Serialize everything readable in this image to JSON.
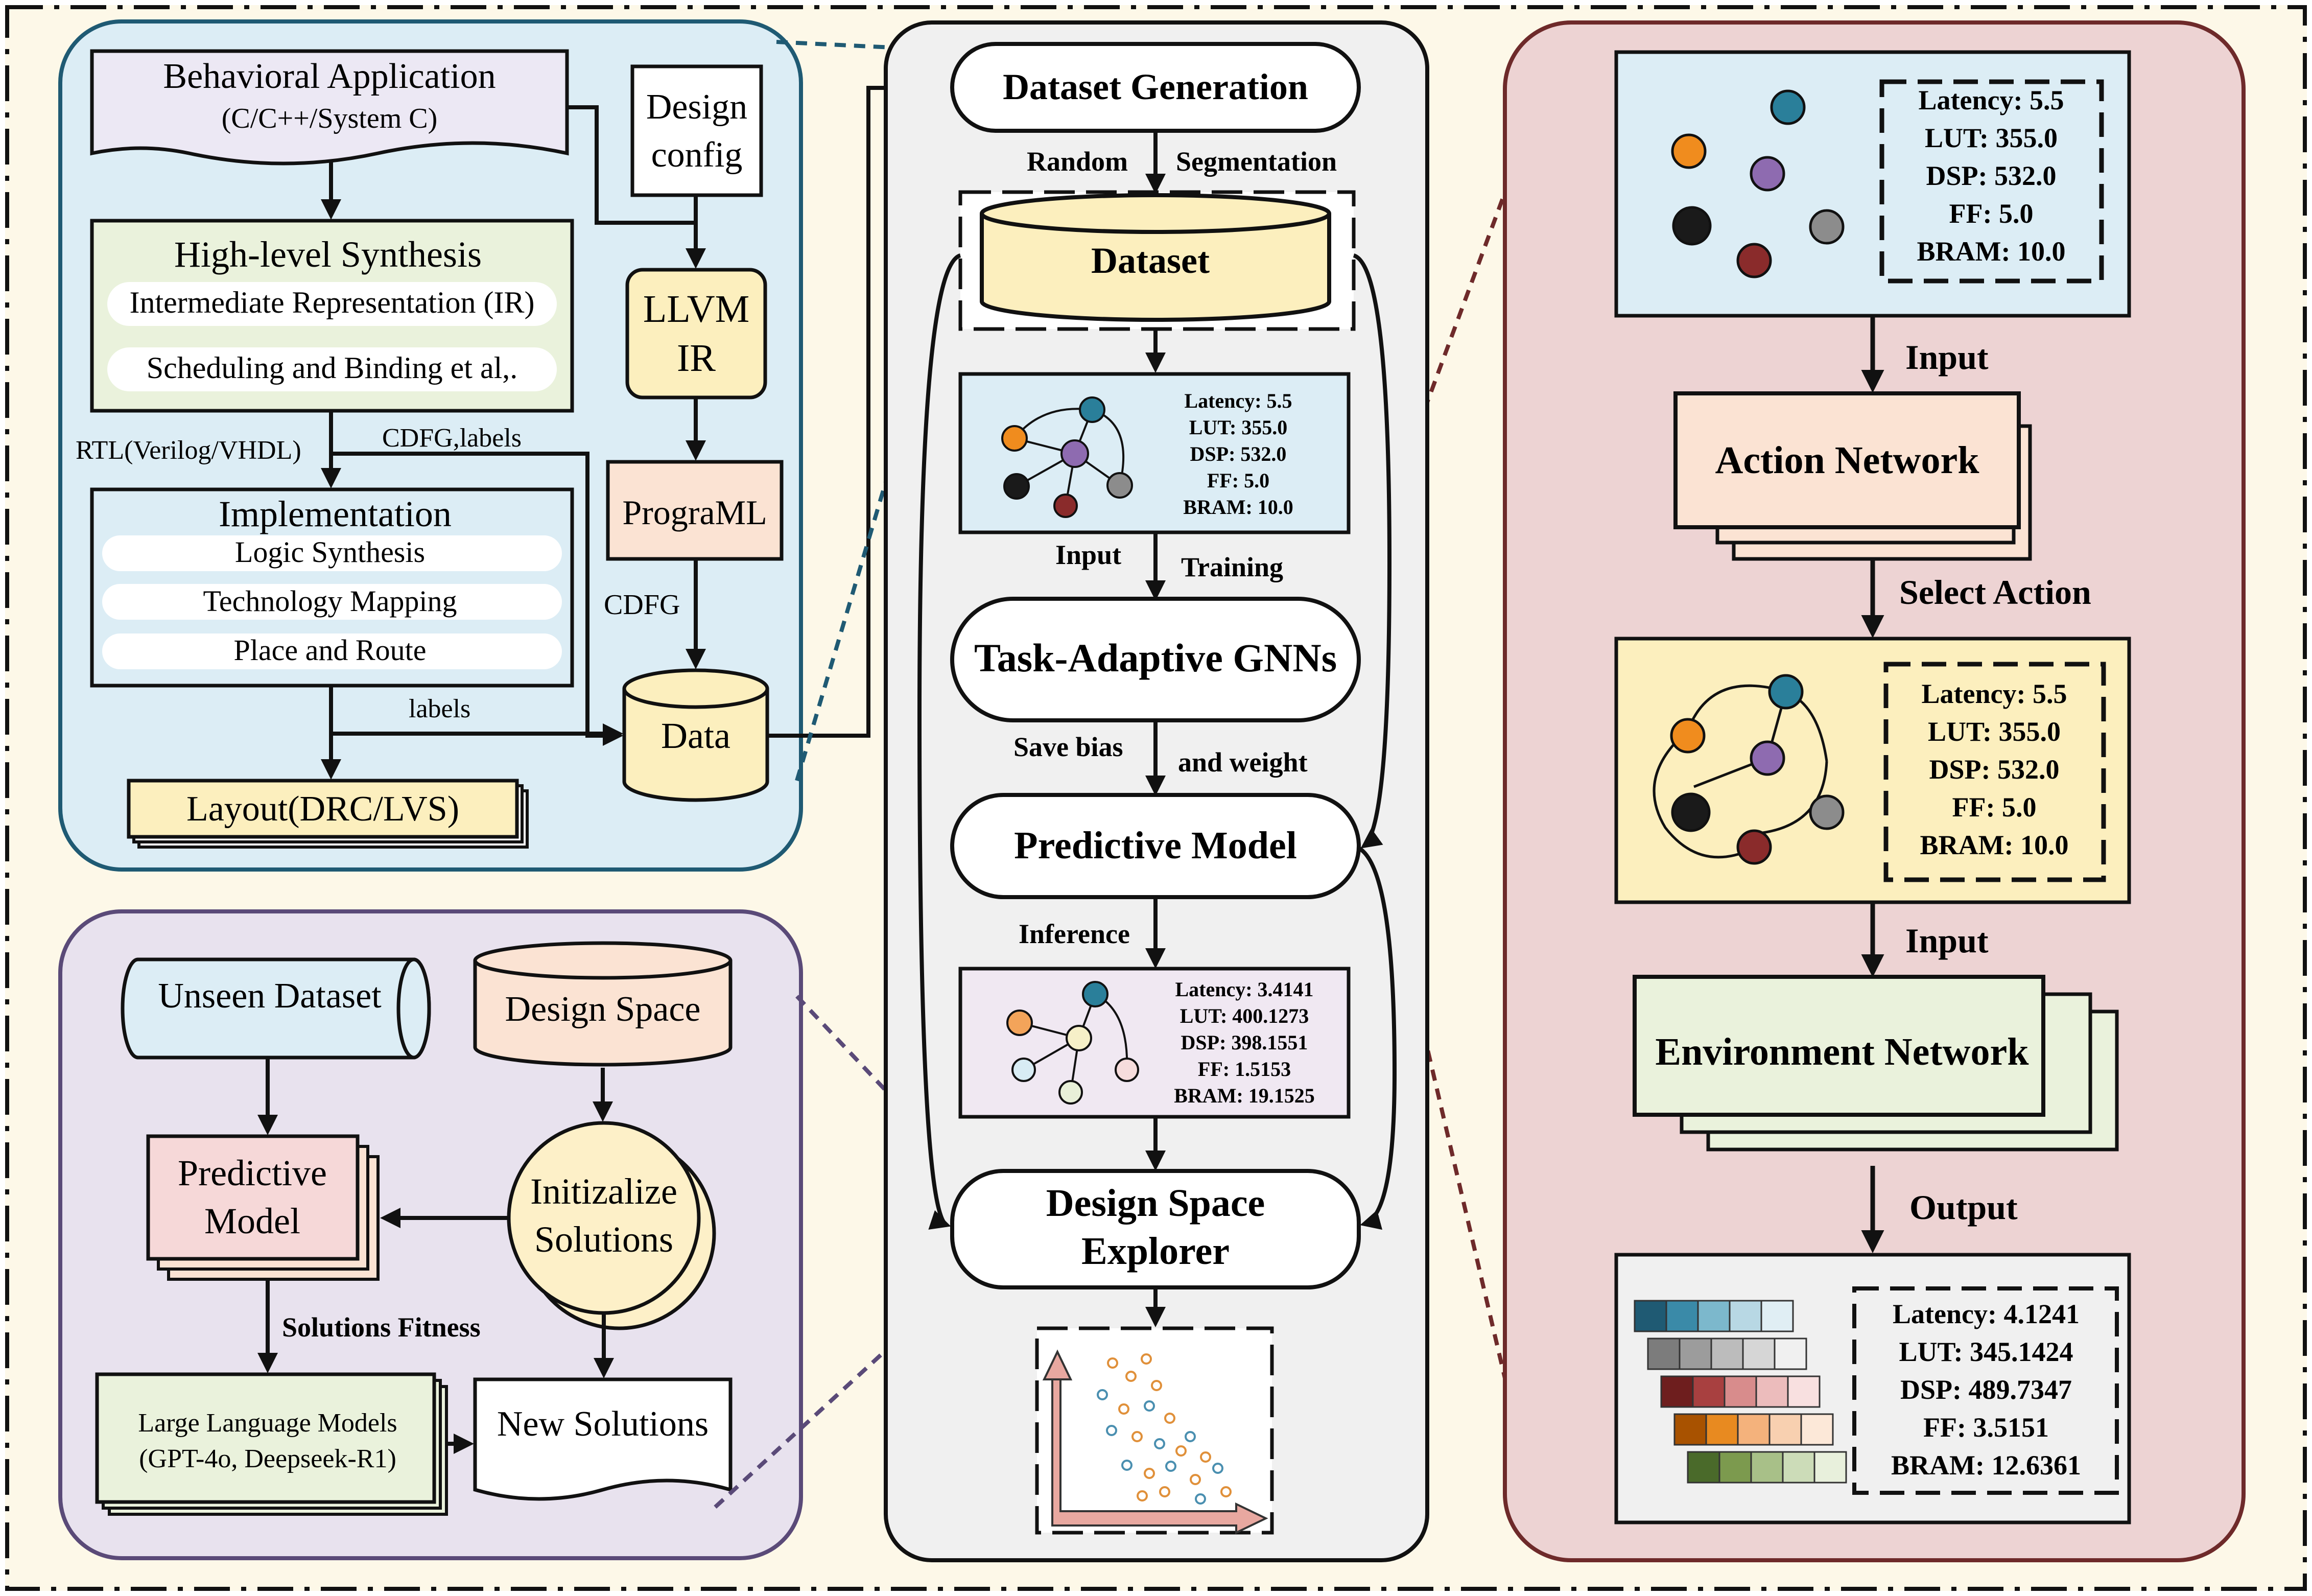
{
  "colors": {
    "background": "#fdf8e8",
    "hls_panel": "#dcedf5",
    "hls_border": "#1f5a73",
    "dse_panel": "#e8e2ee",
    "dse_border": "#5a4a78",
    "center_panel": "#f0f0f0",
    "right_panel": "#edd3d3",
    "right_border": "#6e2a2a",
    "nodes": [
      "#f08c1e",
      "#2a7f9a",
      "#8e6bb0",
      "#1a1a1a",
      "#8a2b2b",
      "#8c8c8c"
    ],
    "nodes_light": [
      "#f3a45a",
      "#2a7f9a",
      "#f6f0c8",
      "#d8ecf4",
      "#e8f0d8",
      "#f6dcdc"
    ],
    "scatter_blue": "#4a8fb0",
    "scatter_orange": "#e0903a",
    "axis_arrow": "#e8a8a0",
    "heat_rows": [
      [
        "#1f5a73",
        "#3a8aa8",
        "#7cb8cc",
        "#b8d8e4",
        "#e0eef4"
      ],
      [
        "#7c7c7c",
        "#9c9c9c",
        "#bcbcbc",
        "#d6d6d6",
        "#f0f0f0"
      ],
      [
        "#6e1e1e",
        "#a84040",
        "#d88c8c",
        "#ecbcbc",
        "#f8e0e0"
      ],
      [
        "#a85200",
        "#e88a20",
        "#f4b27c",
        "#f8d0b0",
        "#fce8d8"
      ],
      [
        "#4a6a2a",
        "#7c9a4e",
        "#a8c088",
        "#ccdcb8",
        "#e8f0dc"
      ]
    ]
  },
  "hls": {
    "behavioral_app": "Behavioral Application",
    "behavioral_app_sub": "(C/C++/System C)",
    "design_config_1": "Design",
    "design_config_2": "config",
    "hls_title": "High-level Synthesis",
    "ir": "Intermediate Representation (IR)",
    "scheduling": "Scheduling and Binding et al,.",
    "llvm_1": "LLVM",
    "llvm_2": "IR",
    "rtl": "RTL(Verilog/VHDL)",
    "cdfg_labels": "CDFG,labels",
    "implementation": "Implementation",
    "logic_synthesis": "Logic Synthesis",
    "tech_mapping": "Technology Mapping",
    "place_route": "Place and Route",
    "programl": "PrograML",
    "cdfg": "CDFG",
    "labels": "labels",
    "data": "Data",
    "layout": "Layout(DRC/LVS)"
  },
  "dse": {
    "unseen_dataset": "Unseen Dataset",
    "design_space": "Design Space",
    "predictive_model_1": "Predictive",
    "predictive_model_2": "Model",
    "init_1": "Initizalize",
    "init_2": "Solutions",
    "solutions_fitness": "Solutions Fitness",
    "llm_1": "Large Language Models",
    "llm_2": "(GPT-4o, Deepseek-R1)",
    "new_solutions": "New Solutions"
  },
  "center": {
    "dataset_generation": "Dataset Generation",
    "random": "Random",
    "segmentation": "Segmentation",
    "dataset": "Dataset",
    "metrics1": [
      "Latency: 5.5",
      "LUT: 355.0",
      "DSP: 532.0",
      "FF: 5.0",
      "BRAM: 10.0"
    ],
    "input": "Input",
    "training": "Training",
    "task_gnn": "Task-Adaptive GNNs",
    "save_bias": "Save bias",
    "and_weight": "and weight",
    "predictive_model": "Predictive Model",
    "inference": "Inference",
    "metrics2": [
      "Latency: 3.4141",
      "LUT: 400.1273",
      "DSP: 398.1551",
      "FF: 1.5153",
      "BRAM: 19.1525"
    ],
    "dse_1": "Design Space",
    "dse_2": "Explorer"
  },
  "right": {
    "metrics_top": [
      "Latency: 5.5",
      "LUT: 355.0",
      "DSP: 532.0",
      "FF: 5.0",
      "BRAM: 10.0"
    ],
    "input_1": "Input",
    "action_network": "Action Network",
    "select_action": "Select Action",
    "metrics_mid": [
      "Latency: 5.5",
      "LUT: 355.0",
      "DSP: 532.0",
      "FF: 5.0",
      "BRAM: 10.0"
    ],
    "input_2": "Input",
    "environment_network": "Environment Network",
    "output": "Output",
    "metrics_out": [
      "Latency: 4.1241",
      "LUT: 345.1424",
      "DSP: 489.7347",
      "FF: 3.5151",
      "BRAM: 12.6361"
    ]
  }
}
